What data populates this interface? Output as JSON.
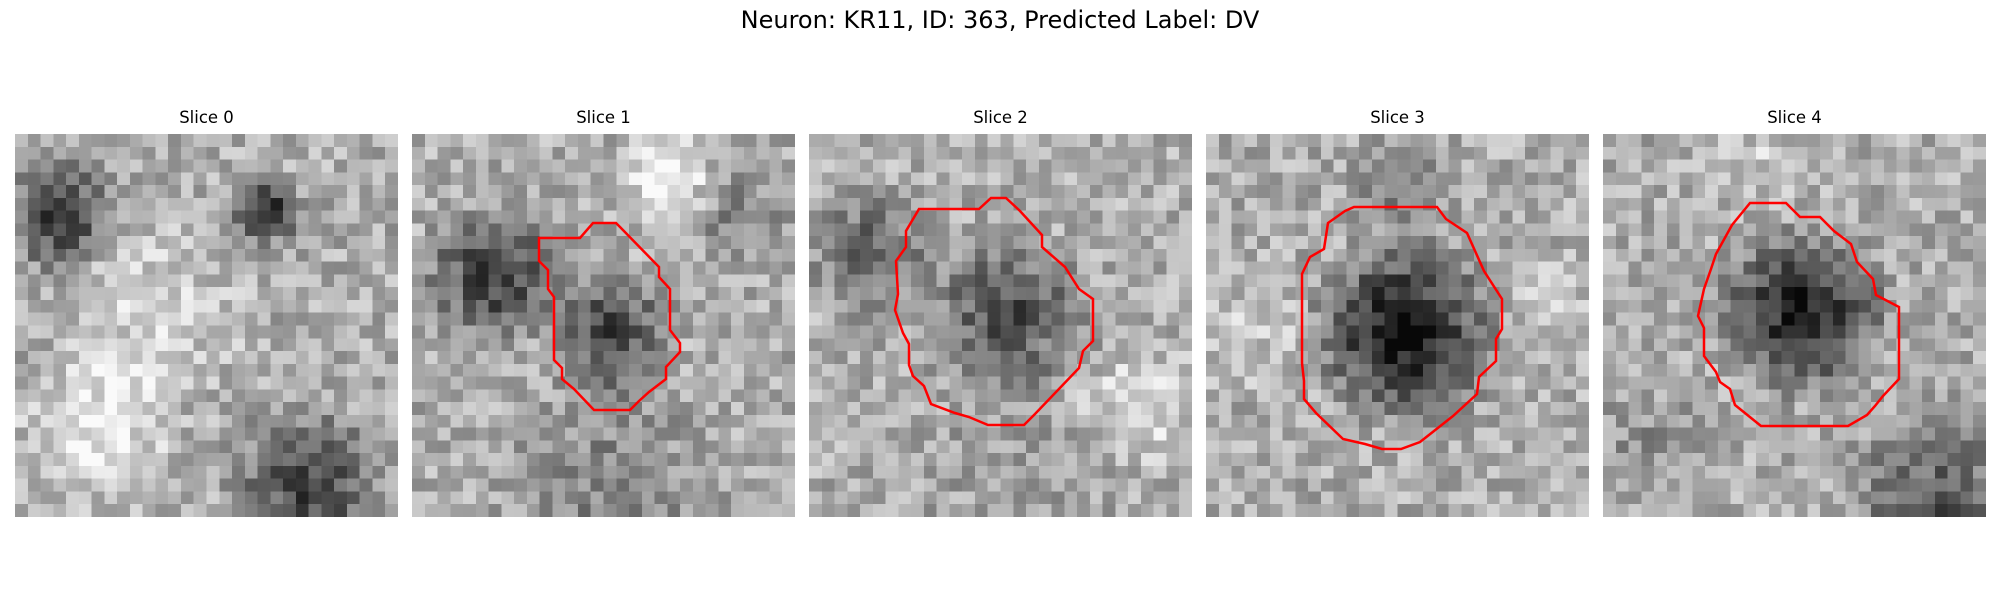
{
  "figure": {
    "title": "Neuron: KR11, ID: 363, Predicted Label: DV",
    "contour_color": "#ff0000",
    "colormap": "grayscale",
    "panels": [
      {
        "title": "Slice 0",
        "has_contour": false
      },
      {
        "title": "Slice 1",
        "has_contour": true
      },
      {
        "title": "Slice 2",
        "has_contour": true
      },
      {
        "title": "Slice 3",
        "has_contour": true
      },
      {
        "title": "Slice 4",
        "has_contour": true
      }
    ]
  }
}
